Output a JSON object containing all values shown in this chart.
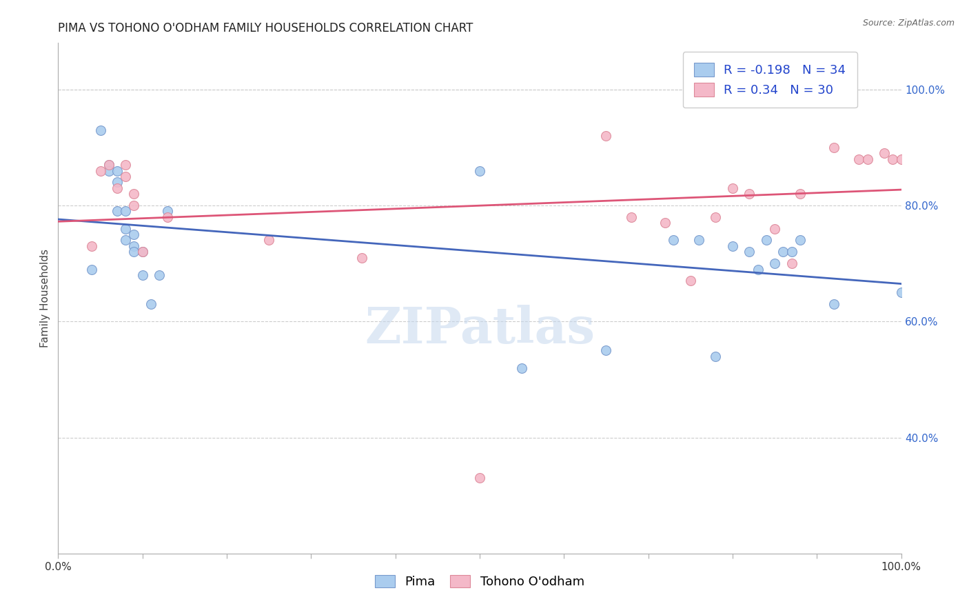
{
  "title": "PIMA VS TOHONO O'ODHAM FAMILY HOUSEHOLDS CORRELATION CHART",
  "source_text": "Source: ZipAtlas.com",
  "ylabel": "Family Households",
  "xlim": [
    0.0,
    1.0
  ],
  "ylim": [
    0.2,
    1.08
  ],
  "right_yticks": [
    0.4,
    0.6,
    0.8,
    1.0
  ],
  "right_ytick_labels": [
    "40.0%",
    "60.0%",
    "80.0%",
    "100.0%"
  ],
  "grid_color": "#cccccc",
  "background_color": "#ffffff",
  "pima_color": "#aaccee",
  "pima_edge_color": "#7799cc",
  "tohono_color": "#f4b8c8",
  "tohono_edge_color": "#dd8899",
  "pima_line_color": "#4466bb",
  "tohono_line_color": "#dd5577",
  "pima_R": -0.198,
  "pima_N": 34,
  "tohono_R": 0.34,
  "tohono_N": 30,
  "legend_color": "#2244cc",
  "pima_x": [
    0.04,
    0.05,
    0.06,
    0.06,
    0.07,
    0.07,
    0.07,
    0.08,
    0.08,
    0.08,
    0.09,
    0.09,
    0.09,
    0.1,
    0.1,
    0.11,
    0.12,
    0.13,
    0.5,
    0.55,
    0.65,
    0.73,
    0.76,
    0.78,
    0.8,
    0.82,
    0.83,
    0.84,
    0.85,
    0.86,
    0.87,
    0.88,
    0.92,
    1.0
  ],
  "pima_y": [
    0.69,
    0.93,
    0.87,
    0.86,
    0.84,
    0.86,
    0.79,
    0.79,
    0.76,
    0.74,
    0.73,
    0.75,
    0.72,
    0.72,
    0.68,
    0.63,
    0.68,
    0.79,
    0.86,
    0.52,
    0.55,
    0.74,
    0.74,
    0.54,
    0.73,
    0.72,
    0.69,
    0.74,
    0.7,
    0.72,
    0.72,
    0.74,
    0.63,
    0.65
  ],
  "tohono_x": [
    0.04,
    0.05,
    0.06,
    0.07,
    0.08,
    0.08,
    0.09,
    0.09,
    0.1,
    0.13,
    0.25,
    0.36,
    0.5,
    0.65,
    0.68,
    0.72,
    0.75,
    0.78,
    0.8,
    0.82,
    0.85,
    0.87,
    0.88,
    0.9,
    0.92,
    0.95,
    0.96,
    0.98,
    0.99,
    1.0
  ],
  "tohono_y": [
    0.73,
    0.86,
    0.87,
    0.83,
    0.85,
    0.87,
    0.8,
    0.82,
    0.72,
    0.78,
    0.74,
    0.71,
    0.33,
    0.92,
    0.78,
    0.77,
    0.67,
    0.78,
    0.83,
    0.82,
    0.76,
    0.7,
    0.82,
    1.0,
    0.9,
    0.88,
    0.88,
    0.89,
    0.88,
    0.88
  ],
  "bottom_legend_labels": [
    "Pima",
    "Tohono O'odham"
  ],
  "watermark_text": "ZIPatlas",
  "title_fontsize": 12,
  "axis_label_fontsize": 11,
  "tick_fontsize": 11,
  "legend_fontsize": 13,
  "marker_size": 100,
  "linewidth": 2.0
}
